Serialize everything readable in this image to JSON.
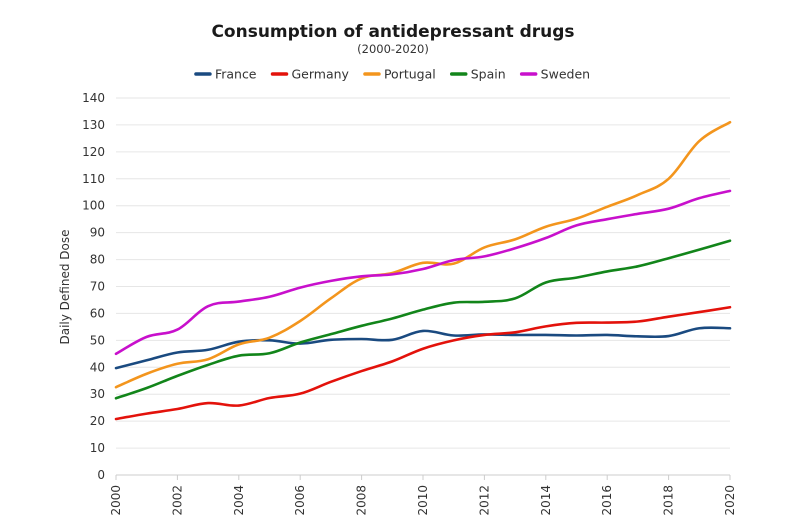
{
  "chart_data": {
    "type": "line",
    "title": "Consumption of antidepressant drugs",
    "subtitle": "(2000-2020)",
    "xlabel": "",
    "ylabel": "Daily Defined Dose",
    "x": [
      2000,
      2001,
      2002,
      2003,
      2004,
      2005,
      2006,
      2007,
      2008,
      2009,
      2010,
      2011,
      2012,
      2013,
      2014,
      2015,
      2016,
      2017,
      2018,
      2019,
      2020
    ],
    "xlim": [
      2000,
      2020
    ],
    "ylim": [
      0,
      140
    ],
    "xticks": [
      "2000",
      "2002",
      "2004",
      "2006",
      "2008",
      "2010",
      "2012",
      "2014",
      "2016",
      "2018",
      "2020"
    ],
    "yticks": [
      "0",
      "10",
      "20",
      "30",
      "40",
      "50",
      "60",
      "70",
      "80",
      "90",
      "100",
      "110",
      "120",
      "130",
      "140"
    ],
    "grid": true,
    "legend_position": "top-center",
    "series": [
      {
        "name": "France",
        "color": "#1a4a80",
        "values": [
          39.7,
          42.6,
          45.5,
          46.5,
          49.5,
          50.0,
          48.8,
          50.2,
          50.5,
          50.2,
          53.5,
          51.8,
          52.2,
          52.0,
          52.0,
          51.8,
          52.0,
          51.5,
          51.6,
          54.5,
          54.5
        ]
      },
      {
        "name": "Germany",
        "color": "#e3120b",
        "values": [
          20.8,
          22.8,
          24.5,
          26.7,
          25.8,
          28.6,
          30.2,
          34.6,
          38.6,
          42.2,
          46.9,
          50.0,
          52.0,
          53.0,
          55.2,
          56.5,
          56.6,
          57.0,
          58.8,
          60.5,
          62.3
        ]
      },
      {
        "name": "Portugal",
        "color": "#f3951d",
        "values": [
          32.6,
          37.6,
          41.3,
          43.0,
          48.5,
          51.0,
          57.2,
          65.6,
          73.0,
          75.0,
          78.8,
          78.5,
          84.5,
          87.5,
          92.2,
          95.2,
          99.6,
          104.0,
          110.0,
          124.0,
          131.0
        ]
      },
      {
        "name": "Spain",
        "color": "#12851a",
        "values": [
          28.5,
          32.3,
          36.8,
          40.9,
          44.3,
          45.2,
          49.2,
          52.3,
          55.4,
          58.1,
          61.4,
          64.0,
          64.3,
          65.6,
          71.5,
          73.3,
          75.6,
          77.5,
          80.5,
          83.7,
          87.0
        ]
      },
      {
        "name": "Sweden",
        "color": "#c810cc",
        "values": [
          45.0,
          51.3,
          54.0,
          62.7,
          64.4,
          66.2,
          69.6,
          72.1,
          73.8,
          74.5,
          76.5,
          79.8,
          81.2,
          84.2,
          88.0,
          92.7,
          95.0,
          97.0,
          98.9,
          102.8,
          105.5
        ]
      }
    ]
  }
}
